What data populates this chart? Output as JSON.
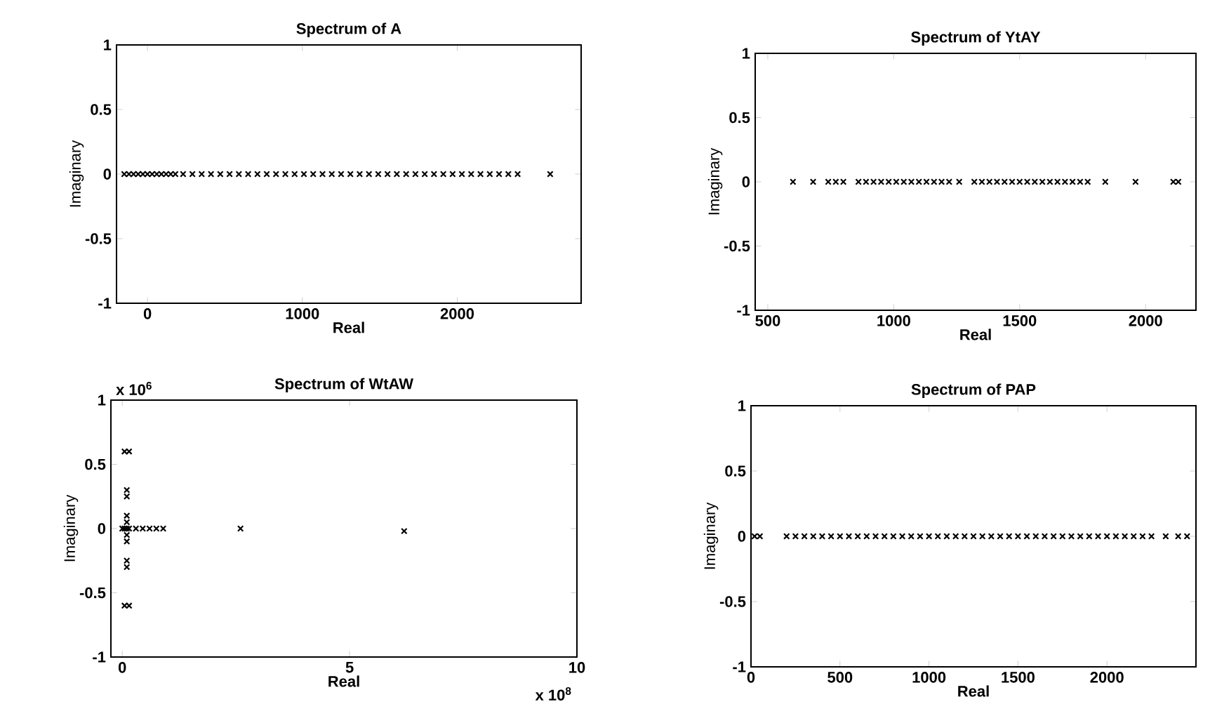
{
  "chart_data": [
    {
      "type": "scatter",
      "title": "Spectrum of A",
      "xlabel": "Real",
      "ylabel": "Imaginary",
      "marker": "cross",
      "color": "#000000",
      "xlim": [
        -200,
        2800
      ],
      "ylim": [
        -1,
        1
      ],
      "xticks": [
        0,
        1000,
        2000
      ],
      "yticks": [
        -1,
        -0.5,
        0,
        0.5,
        1
      ],
      "x": [
        -150,
        -120,
        -90,
        -60,
        -30,
        0,
        30,
        60,
        90,
        120,
        150,
        180,
        230,
        290,
        350,
        410,
        470,
        530,
        590,
        650,
        710,
        770,
        830,
        890,
        950,
        1010,
        1070,
        1130,
        1190,
        1250,
        1310,
        1370,
        1430,
        1490,
        1550,
        1610,
        1670,
        1730,
        1790,
        1850,
        1910,
        1970,
        2030,
        2090,
        2150,
        2210,
        2270,
        2330,
        2390,
        2600
      ],
      "values": [
        0,
        0,
        0,
        0,
        0,
        0,
        0,
        0,
        0,
        0,
        0,
        0,
        0,
        0,
        0,
        0,
        0,
        0,
        0,
        0,
        0,
        0,
        0,
        0,
        0,
        0,
        0,
        0,
        0,
        0,
        0,
        0,
        0,
        0,
        0,
        0,
        0,
        0,
        0,
        0,
        0,
        0,
        0,
        0,
        0,
        0,
        0,
        0,
        0,
        0
      ]
    },
    {
      "type": "scatter",
      "title": "Spectrum of YtAY",
      "xlabel": "Real",
      "ylabel": "Imaginary",
      "marker": "cross",
      "color": "#000000",
      "xlim": [
        450,
        2200
      ],
      "ylim": [
        -1,
        1
      ],
      "xticks": [
        500,
        1000,
        1500,
        2000
      ],
      "yticks": [
        -1,
        -0.5,
        0,
        0.5,
        1
      ],
      "x": [
        600,
        680,
        740,
        770,
        800,
        860,
        890,
        920,
        950,
        980,
        1010,
        1040,
        1070,
        1100,
        1130,
        1160,
        1190,
        1220,
        1260,
        1320,
        1350,
        1380,
        1410,
        1440,
        1470,
        1500,
        1530,
        1560,
        1590,
        1620,
        1650,
        1680,
        1710,
        1740,
        1770,
        1840,
        1960,
        2110,
        2130
      ],
      "values": [
        0,
        0,
        0,
        0,
        0,
        0,
        0,
        0,
        0,
        0,
        0,
        0,
        0,
        0,
        0,
        0,
        0,
        0,
        0,
        0,
        0,
        0,
        0,
        0,
        0,
        0,
        0,
        0,
        0,
        0,
        0,
        0,
        0,
        0,
        0,
        0,
        0,
        0,
        0
      ]
    },
    {
      "type": "scatter",
      "title": "Spectrum of WtAW",
      "xlabel": "Real",
      "ylabel": "Imaginary",
      "marker": "cross",
      "color": "#000000",
      "xlim": [
        -0.25,
        10
      ],
      "ylim": [
        -1,
        1
      ],
      "xticks": [
        0,
        5,
        10
      ],
      "yticks": [
        -1,
        -0.5,
        0,
        0.5,
        1
      ],
      "annotations": [
        "x 10$^{6}$",
        "x 10$^{8}$"
      ],
      "x": [
        0,
        0.05,
        0.1,
        0.15,
        0.05,
        0.15,
        0.05,
        0.15,
        0.1,
        0.1,
        0.1,
        0.1,
        0.1,
        0.1,
        0.1,
        0.1,
        0.3,
        0.45,
        0.6,
        0.75,
        0.9,
        2.6,
        6.2
      ],
      "values": [
        0,
        0,
        0,
        0,
        0.6,
        0.6,
        -0.6,
        -0.6,
        0.3,
        0.25,
        -0.3,
        -0.25,
        0.1,
        -0.1,
        0.05,
        -0.05,
        0,
        0,
        0,
        0,
        0,
        0,
        -0.02
      ]
    },
    {
      "type": "scatter",
      "title": "Spectrum of PAP",
      "xlabel": "Real",
      "ylabel": "Imaginary",
      "marker": "cross",
      "color": "#000000",
      "xlim": [
        0,
        2500
      ],
      "ylim": [
        -1,
        1
      ],
      "xticks": [
        0,
        500,
        1000,
        1500,
        2000
      ],
      "yticks": [
        -1,
        -0.5,
        0,
        0.5,
        1
      ],
      "x": [
        20,
        50,
        200,
        250,
        300,
        350,
        400,
        450,
        500,
        550,
        600,
        650,
        700,
        750,
        800,
        850,
        900,
        950,
        1000,
        1050,
        1100,
        1150,
        1200,
        1250,
        1300,
        1350,
        1400,
        1450,
        1500,
        1550,
        1600,
        1650,
        1700,
        1750,
        1800,
        1850,
        1900,
        1950,
        2000,
        2050,
        2100,
        2150,
        2200,
        2250,
        2330,
        2400,
        2450
      ],
      "values": [
        0,
        0,
        0,
        0,
        0,
        0,
        0,
        0,
        0,
        0,
        0,
        0,
        0,
        0,
        0,
        0,
        0,
        0,
        0,
        0,
        0,
        0,
        0,
        0,
        0,
        0,
        0,
        0,
        0,
        0,
        0,
        0,
        0,
        0,
        0,
        0,
        0,
        0,
        0,
        0,
        0,
        0,
        0,
        0,
        0,
        0,
        0
      ]
    }
  ]
}
